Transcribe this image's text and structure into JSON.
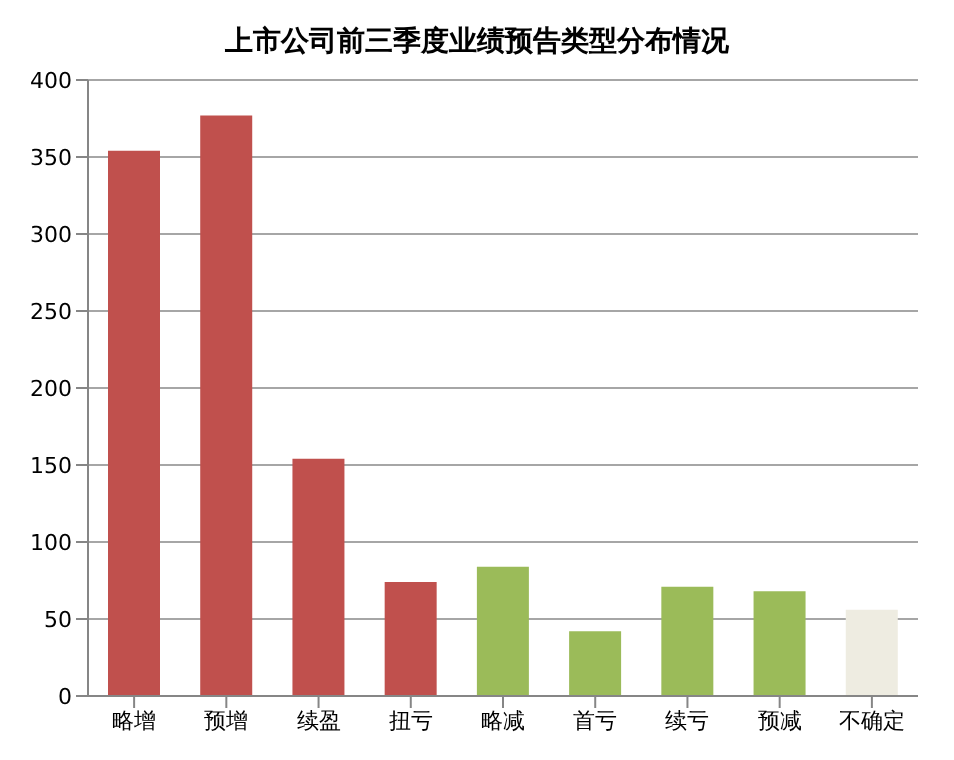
{
  "chart_data": {
    "type": "bar",
    "title": "上市公司前三季度业绩预告类型分布情况",
    "categories": [
      "略增",
      "预增",
      "续盈",
      "扭亏",
      "略减",
      "首亏",
      "续亏",
      "预减",
      "不确定"
    ],
    "values": [
      354,
      377,
      154,
      74,
      84,
      42,
      71,
      68,
      56
    ],
    "colors": [
      "#c0504d",
      "#c0504d",
      "#c0504d",
      "#c0504d",
      "#9bbb59",
      "#9bbb59",
      "#9bbb59",
      "#9bbb59",
      "#eeece1"
    ],
    "ylim": [
      0,
      400
    ],
    "yticks": [
      0,
      50,
      100,
      150,
      200,
      250,
      300,
      350,
      400
    ],
    "grid": "y"
  }
}
